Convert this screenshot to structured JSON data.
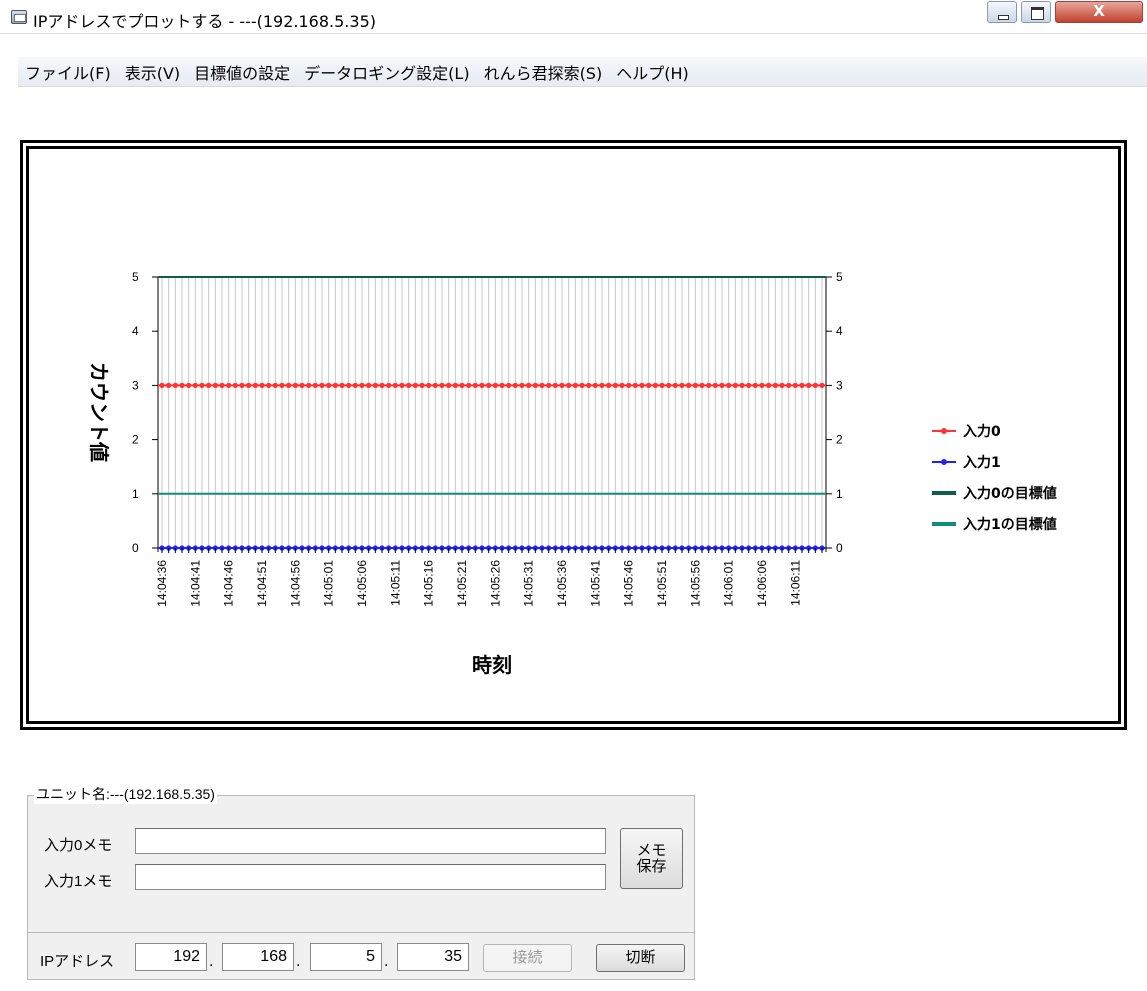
{
  "window": {
    "title": "IPアドレスでプロットする - ---(192.168.5.35)",
    "close_glyph": "X"
  },
  "menu": [
    "ファイル(F)",
    "表示(V)",
    "目標値の設定",
    "データロギング設定(L)",
    "れんら君探索(S)",
    "ヘルプ(H)"
  ],
  "chart_data": {
    "type": "line",
    "xlabel": "時刻",
    "ylabel": "カウント値",
    "ylim": [
      0,
      5
    ],
    "yticks": [
      0,
      1,
      2,
      3,
      4,
      5
    ],
    "secondary_yticks": [
      0,
      1,
      2,
      3,
      4,
      5
    ],
    "x_tick_labels": [
      "14:04:36",
      "14:04:41",
      "14:04:46",
      "14:04:51",
      "14:04:56",
      "14:05:01",
      "14:05:06",
      "14:05:11",
      "14:05:16",
      "14:05:21",
      "14:05:26",
      "14:05:31",
      "14:05:36",
      "14:05:41",
      "14:05:46",
      "14:05:51",
      "14:05:56",
      "14:06:01",
      "14:06:06",
      "14:06:11"
    ],
    "num_points": 100,
    "grid": true,
    "legend_position": "right",
    "series": [
      {
        "name": "入力0",
        "value": 3,
        "markers": true,
        "color": "#ff3333"
      },
      {
        "name": "入力1",
        "value": 0,
        "markers": true,
        "color": "#2222ff"
      },
      {
        "name": "入力0の目標値",
        "value": 5,
        "markers": false,
        "color": "#0f5e4e"
      },
      {
        "name": "入力1の目標値",
        "value": 1,
        "markers": false,
        "color": "#118c7a"
      }
    ]
  },
  "unit_panel": {
    "group_title": "ユニット名:---(192.168.5.35)",
    "memo0_label": "入力0メモ",
    "memo1_label": "入力1メモ",
    "memo0_value": "",
    "memo1_value": "",
    "memo_save_line1": "メモ",
    "memo_save_line2": "保存",
    "ip_label": "IPアドレス",
    "ip": [
      "192",
      "168",
      "5",
      "35"
    ],
    "ip_dot": ".",
    "connect_label": "接続",
    "disconnect_label": "切断"
  }
}
